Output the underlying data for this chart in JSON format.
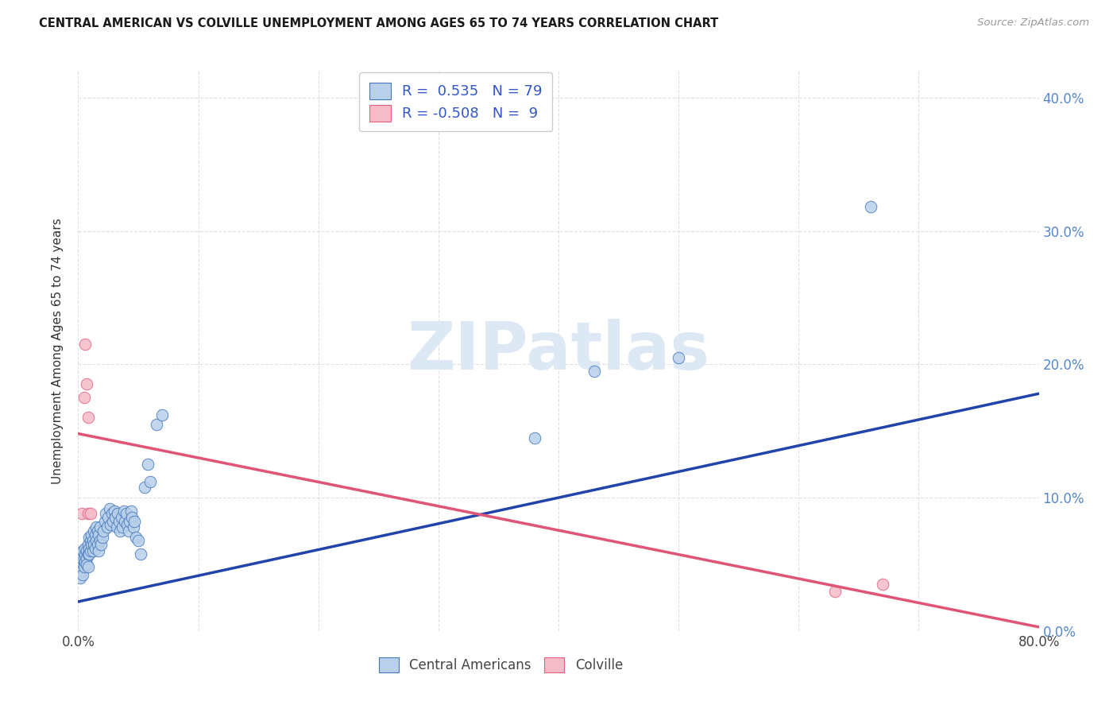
{
  "title": "CENTRAL AMERICAN VS COLVILLE UNEMPLOYMENT AMONG AGES 65 TO 74 YEARS CORRELATION CHART",
  "source": "Source: ZipAtlas.com",
  "ylabel": "Unemployment Among Ages 65 to 74 years",
  "xlim": [
    0.0,
    0.8
  ],
  "ylim": [
    0.0,
    0.42
  ],
  "r_blue": 0.535,
  "n_blue": 79,
  "r_pink": -0.508,
  "n_pink": 9,
  "blue_fill": "#b8d0ea",
  "blue_edge": "#4477bb",
  "pink_fill": "#f5bbc8",
  "pink_edge": "#e06080",
  "blue_line": "#2244aa",
  "pink_line": "#e05575",
  "grid_color": "#cccccc",
  "watermark_color": "#dce8f4",
  "legend_color": "#3355cc",
  "blue_x": [
    0.002,
    0.003,
    0.003,
    0.004,
    0.004,
    0.005,
    0.005,
    0.005,
    0.006,
    0.006,
    0.006,
    0.007,
    0.007,
    0.007,
    0.008,
    0.008,
    0.008,
    0.009,
    0.009,
    0.009,
    0.01,
    0.01,
    0.011,
    0.011,
    0.012,
    0.012,
    0.013,
    0.013,
    0.014,
    0.014,
    0.015,
    0.015,
    0.016,
    0.016,
    0.017,
    0.017,
    0.018,
    0.018,
    0.019,
    0.02,
    0.021,
    0.022,
    0.023,
    0.024,
    0.025,
    0.026,
    0.027,
    0.028,
    0.029,
    0.03,
    0.031,
    0.032,
    0.033,
    0.034,
    0.035,
    0.036,
    0.037,
    0.038,
    0.039,
    0.04,
    0.041,
    0.042,
    0.043,
    0.044,
    0.045,
    0.046,
    0.047,
    0.048,
    0.05,
    0.052,
    0.055,
    0.058,
    0.06,
    0.065,
    0.07,
    0.43,
    0.5,
    0.66,
    0.38
  ],
  "blue_y": [
    0.04,
    0.045,
    0.055,
    0.042,
    0.06,
    0.05,
    0.055,
    0.048,
    0.058,
    0.052,
    0.062,
    0.055,
    0.06,
    0.05,
    0.065,
    0.058,
    0.048,
    0.062,
    0.058,
    0.07,
    0.06,
    0.068,
    0.065,
    0.072,
    0.06,
    0.068,
    0.065,
    0.075,
    0.062,
    0.072,
    0.068,
    0.078,
    0.065,
    0.075,
    0.072,
    0.06,
    0.068,
    0.078,
    0.065,
    0.07,
    0.075,
    0.082,
    0.088,
    0.078,
    0.085,
    0.092,
    0.08,
    0.088,
    0.082,
    0.09,
    0.085,
    0.078,
    0.088,
    0.082,
    0.075,
    0.085,
    0.078,
    0.09,
    0.082,
    0.088,
    0.08,
    0.075,
    0.082,
    0.09,
    0.085,
    0.078,
    0.082,
    0.07,
    0.068,
    0.058,
    0.108,
    0.125,
    0.112,
    0.155,
    0.162,
    0.195,
    0.205,
    0.318,
    0.145
  ],
  "pink_x": [
    0.003,
    0.005,
    0.006,
    0.007,
    0.008,
    0.008,
    0.01,
    0.63,
    0.67
  ],
  "pink_y": [
    0.088,
    0.175,
    0.215,
    0.185,
    0.16,
    0.088,
    0.088,
    0.03,
    0.035
  ],
  "blue_trend_x": [
    0.0,
    0.8
  ],
  "blue_trend_y": [
    0.022,
    0.178
  ],
  "pink_trend_x": [
    0.0,
    0.8
  ],
  "pink_trend_y": [
    0.148,
    0.003
  ]
}
